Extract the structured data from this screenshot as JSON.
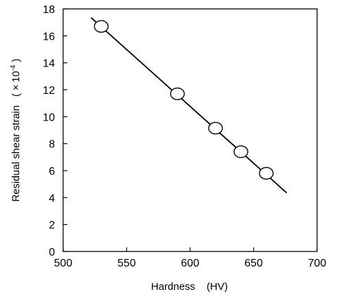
{
  "chart_data": {
    "type": "scatter",
    "title": "",
    "xlabel": "Hardness    (HV)",
    "ylabel": "Residual shear strain   ( × 10",
    "ylabel_exponent": "-4",
    "ylabel_close": " )",
    "xlim": [
      500,
      700
    ],
    "ylim": [
      0,
      18
    ],
    "xticks": [
      500,
      550,
      600,
      650,
      700
    ],
    "yticks": [
      0,
      2,
      4,
      6,
      8,
      10,
      12,
      14,
      16,
      18
    ],
    "grid": false,
    "legend": "none",
    "series": [
      {
        "x": [
          530,
          590,
          620,
          640,
          660
        ],
        "y": [
          16.7,
          11.7,
          9.15,
          7.4,
          5.8
        ]
      }
    ],
    "fit_line": {
      "x": [
        522,
        676
      ],
      "y": [
        17.35,
        4.35
      ]
    },
    "colors": {
      "line": "#000000",
      "marker_fill": "#ffffff",
      "marker_stroke": "#000000"
    }
  }
}
